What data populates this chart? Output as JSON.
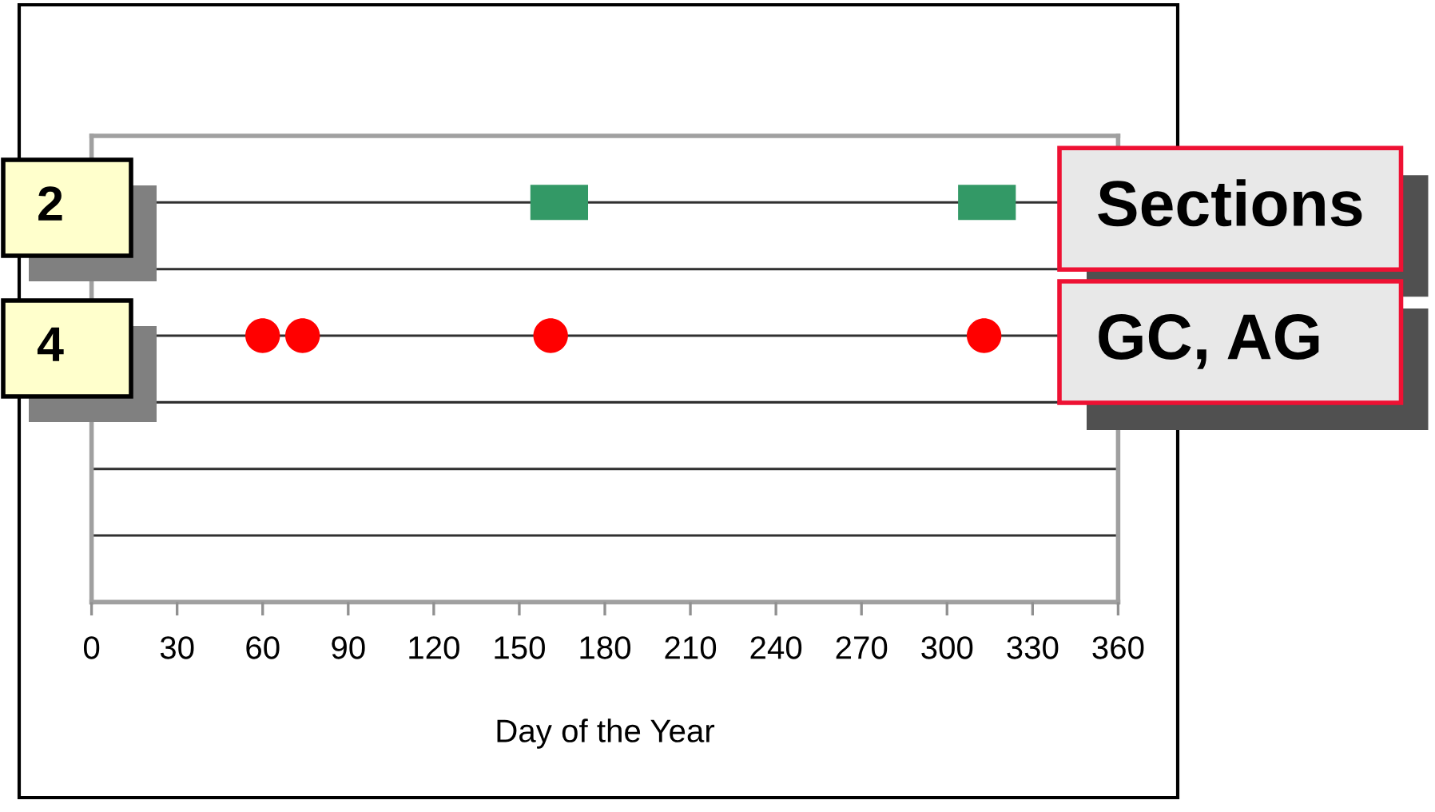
{
  "chart_data": {
    "type": "scatter",
    "orientation": "horizontal",
    "xlabel": "Day of the Year",
    "categories": [
      "Sections",
      null,
      "GC, AG",
      null,
      null,
      null
    ],
    "xlim": [
      0,
      360
    ],
    "xticks": [
      0,
      30,
      60,
      90,
      120,
      150,
      180,
      210,
      240,
      270,
      300,
      330,
      360
    ],
    "series": [
      {
        "color": "#339966",
        "marker": "square",
        "x": [
          "Sections",
          "Sections"
        ],
        "values": [
          164,
          314
        ]
      },
      {
        "color": "#ff0000",
        "marker": "circle",
        "x": [
          "GC, AG",
          "GC, AG",
          "GC, AG",
          "GC, AG"
        ],
        "values": [
          60,
          74,
          161,
          313
        ]
      }
    ],
    "grid": "y",
    "annotations": [
      "2",
      "4"
    ]
  }
}
